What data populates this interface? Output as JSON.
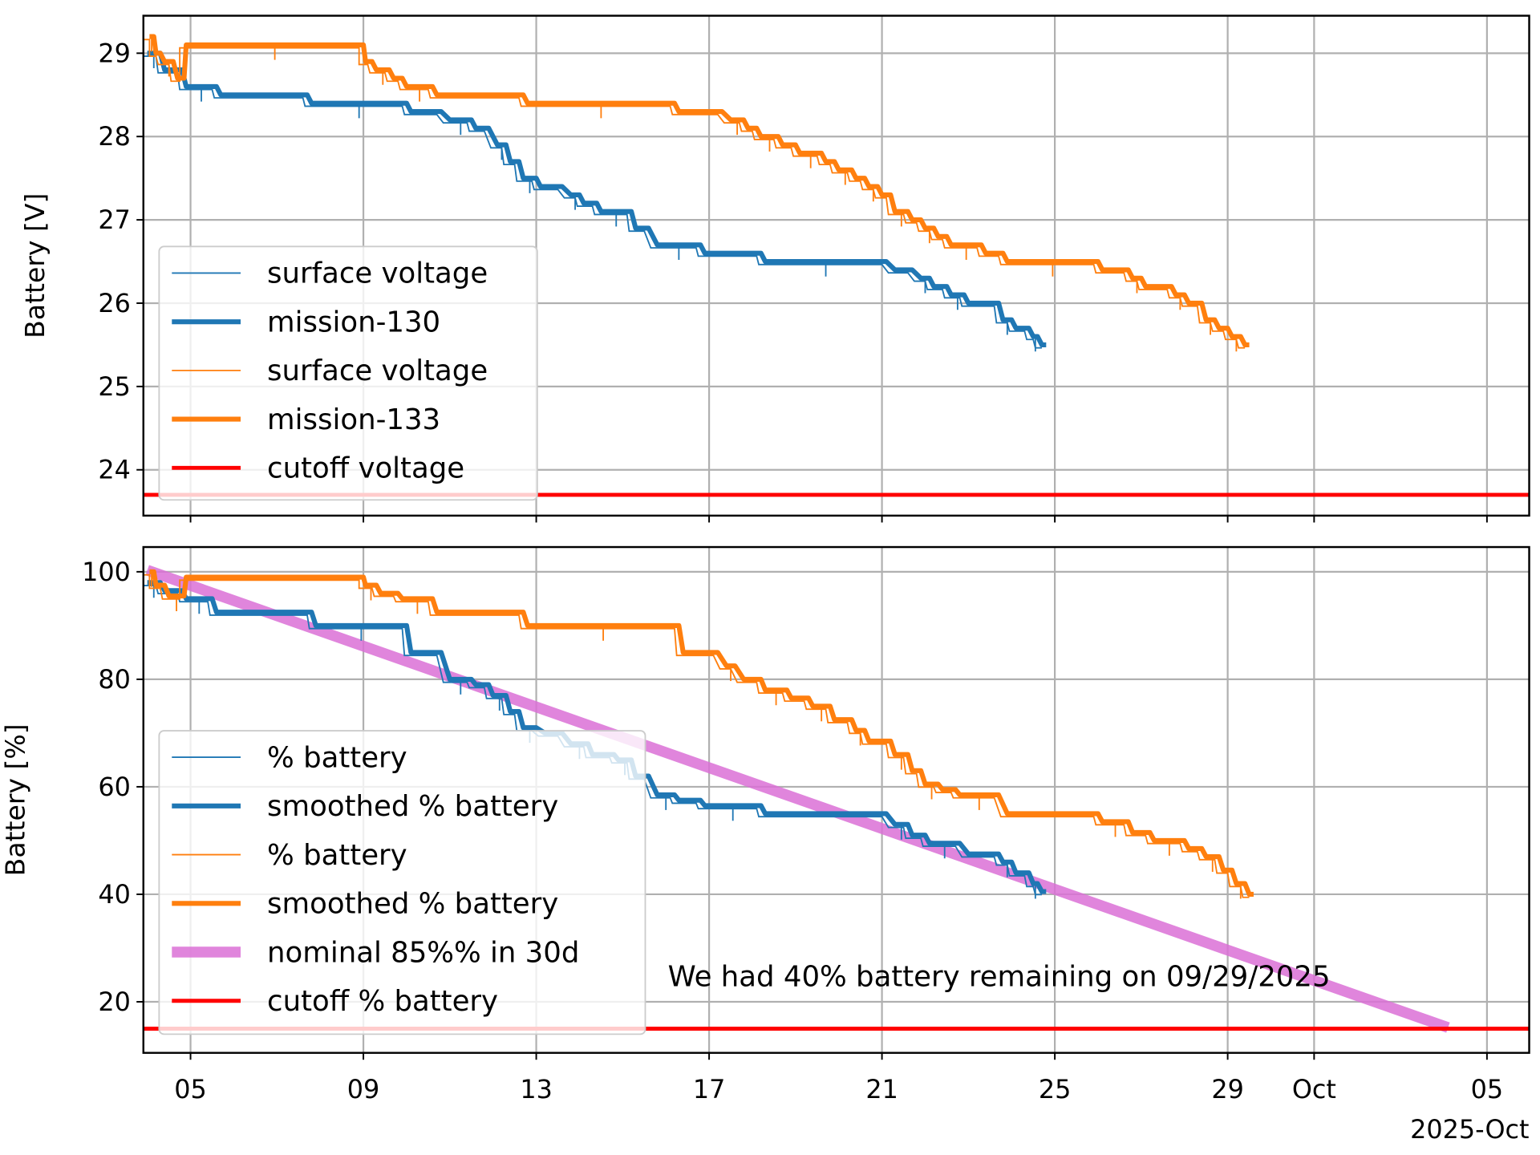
{
  "chart_data": [
    {
      "type": "line",
      "ylabel": "Battery [V]",
      "ylim": [
        23.45,
        29.45
      ],
      "xlim": [
        3.9,
        36
      ],
      "x_unit": "day of month, Sep 2025 (31 = Oct 1)",
      "yticks": [
        24,
        25,
        26,
        27,
        28,
        29
      ],
      "grid": true,
      "legend_position": "lower-left",
      "legend": [
        "surface voltage",
        "mission-130",
        "surface voltage",
        "mission-133",
        "cutoff voltage"
      ],
      "series": [
        {
          "name": "mission-130",
          "color": "#1f77b4",
          "segments": [
            [
              4.0,
              4.3,
              29.0
            ],
            [
              4.4,
              4.8,
              28.8
            ],
            [
              4.9,
              5.6,
              28.6
            ],
            [
              5.7,
              7.7,
              28.5
            ],
            [
              7.8,
              10.0,
              28.4
            ],
            [
              10.1,
              10.8,
              28.3
            ],
            [
              11.0,
              11.5,
              28.2
            ],
            [
              11.6,
              11.9,
              28.1
            ],
            [
              12.1,
              12.3,
              27.9
            ],
            [
              12.4,
              12.6,
              27.7
            ],
            [
              12.7,
              13.0,
              27.5
            ],
            [
              13.1,
              13.6,
              27.4
            ],
            [
              13.8,
              14.0,
              27.3
            ],
            [
              14.1,
              14.4,
              27.2
            ],
            [
              14.5,
              15.2,
              27.1
            ],
            [
              15.3,
              15.6,
              26.9
            ],
            [
              15.8,
              16.8,
              26.7
            ],
            [
              16.9,
              18.2,
              26.6
            ],
            [
              18.3,
              21.1,
              26.5
            ],
            [
              21.3,
              21.7,
              26.4
            ],
            [
              21.9,
              22.1,
              26.3
            ],
            [
              22.2,
              22.5,
              26.2
            ],
            [
              22.6,
              22.9,
              26.1
            ],
            [
              23.0,
              23.7,
              26.0
            ],
            [
              23.8,
              24.0,
              25.8
            ],
            [
              24.1,
              24.4,
              25.7
            ],
            [
              24.5,
              24.6,
              25.6
            ],
            [
              24.7,
              24.8,
              25.5
            ]
          ]
        },
        {
          "name": "mission-133",
          "color": "#ff7f0e",
          "segments": [
            [
              4.05,
              4.15,
              29.2
            ],
            [
              4.2,
              4.3,
              29.0
            ],
            [
              4.4,
              4.6,
              28.9
            ],
            [
              4.7,
              4.85,
              28.7
            ],
            [
              4.9,
              9.0,
              29.1
            ],
            [
              9.05,
              9.2,
              28.9
            ],
            [
              9.3,
              9.6,
              28.8
            ],
            [
              9.7,
              9.9,
              28.7
            ],
            [
              10.0,
              10.6,
              28.6
            ],
            [
              10.7,
              12.7,
              28.5
            ],
            [
              12.8,
              16.2,
              28.4
            ],
            [
              16.3,
              17.3,
              28.3
            ],
            [
              17.5,
              17.8,
              28.2
            ],
            [
              17.9,
              18.1,
              28.1
            ],
            [
              18.2,
              18.6,
              28.0
            ],
            [
              18.7,
              19.0,
              27.9
            ],
            [
              19.1,
              19.6,
              27.8
            ],
            [
              19.7,
              19.9,
              27.7
            ],
            [
              20.0,
              20.3,
              27.6
            ],
            [
              20.4,
              20.6,
              27.5
            ],
            [
              20.7,
              20.9,
              27.4
            ],
            [
              21.0,
              21.2,
              27.3
            ],
            [
              21.3,
              21.6,
              27.1
            ],
            [
              21.7,
              21.9,
              27.0
            ],
            [
              22.0,
              22.2,
              26.9
            ],
            [
              22.3,
              22.5,
              26.8
            ],
            [
              22.6,
              23.3,
              26.7
            ],
            [
              23.4,
              23.8,
              26.6
            ],
            [
              23.9,
              26.0,
              26.5
            ],
            [
              26.1,
              26.7,
              26.4
            ],
            [
              26.8,
              27.0,
              26.3
            ],
            [
              27.1,
              27.7,
              26.2
            ],
            [
              27.8,
              28.0,
              26.1
            ],
            [
              28.1,
              28.4,
              26.0
            ],
            [
              28.5,
              28.7,
              25.8
            ],
            [
              28.8,
              29.0,
              25.7
            ],
            [
              29.1,
              29.3,
              25.6
            ],
            [
              29.4,
              29.5,
              25.5
            ]
          ]
        }
      ],
      "cutoff": {
        "name": "cutoff voltage",
        "value": 23.7,
        "color": "#ff0000"
      }
    },
    {
      "type": "line",
      "ylabel": "Battery [%]",
      "ylim": [
        10.5,
        104.6
      ],
      "xlim": [
        3.9,
        36
      ],
      "yticks": [
        20,
        40,
        60,
        80,
        100
      ],
      "grid": true,
      "legend_position": "lower-left",
      "legend": [
        "% battery",
        "smoothed % battery",
        "% battery",
        "smoothed % battery",
        "nominal 85%% in 30d",
        "cutoff % battery"
      ],
      "series": [
        {
          "name": "mission-130",
          "color": "#1f77b4",
          "segments": [
            [
              4.0,
              4.3,
              98
            ],
            [
              4.4,
              4.8,
              96.5
            ],
            [
              4.9,
              5.5,
              95
            ],
            [
              5.6,
              7.8,
              92.5
            ],
            [
              7.9,
              10.0,
              90
            ],
            [
              10.1,
              10.8,
              85
            ],
            [
              11.0,
              11.5,
              80
            ],
            [
              11.6,
              11.9,
              79
            ],
            [
              12.0,
              12.3,
              77
            ],
            [
              12.4,
              12.6,
              74
            ],
            [
              12.7,
              13.0,
              71
            ],
            [
              13.2,
              13.6,
              70
            ],
            [
              13.8,
              14.2,
              68
            ],
            [
              14.3,
              14.8,
              66
            ],
            [
              14.9,
              15.2,
              65
            ],
            [
              15.3,
              15.6,
              62
            ],
            [
              15.8,
              16.2,
              58.5
            ],
            [
              16.3,
              16.8,
              57.5
            ],
            [
              16.9,
              18.2,
              56.5
            ],
            [
              18.3,
              21.1,
              55
            ],
            [
              21.3,
              21.6,
              53
            ],
            [
              21.7,
              22.0,
              51
            ],
            [
              22.1,
              22.8,
              49.5
            ],
            [
              23.0,
              23.7,
              47.5
            ],
            [
              23.8,
              24.0,
              46
            ],
            [
              24.1,
              24.4,
              44
            ],
            [
              24.5,
              24.6,
              42
            ],
            [
              24.7,
              24.8,
              40.5
            ]
          ]
        },
        {
          "name": "mission-133",
          "color": "#ff7f0e",
          "segments": [
            [
              4.05,
              4.15,
              100
            ],
            [
              4.2,
              4.4,
              97.5
            ],
            [
              4.5,
              4.85,
              95.5
            ],
            [
              4.9,
              9.0,
              99
            ],
            [
              9.05,
              9.3,
              97.5
            ],
            [
              9.4,
              9.8,
              96
            ],
            [
              9.9,
              10.6,
              95
            ],
            [
              10.7,
              12.7,
              92.5
            ],
            [
              12.8,
              16.3,
              90
            ],
            [
              16.4,
              17.2,
              85
            ],
            [
              17.4,
              17.6,
              82.5
            ],
            [
              17.8,
              18.2,
              80
            ],
            [
              18.3,
              18.8,
              78
            ],
            [
              18.9,
              19.3,
              76.5
            ],
            [
              19.4,
              19.8,
              75
            ],
            [
              19.9,
              20.3,
              72.5
            ],
            [
              20.4,
              20.6,
              70.5
            ],
            [
              20.7,
              21.2,
              68.5
            ],
            [
              21.3,
              21.6,
              66
            ],
            [
              21.7,
              21.9,
              63
            ],
            [
              22.0,
              22.3,
              60.5
            ],
            [
              22.4,
              22.7,
              59.5
            ],
            [
              22.8,
              23.7,
              58.5
            ],
            [
              23.9,
              26.0,
              55
            ],
            [
              26.1,
              26.7,
              53.5
            ],
            [
              26.8,
              27.2,
              51.5
            ],
            [
              27.3,
              28.0,
              50
            ],
            [
              28.1,
              28.4,
              48.5
            ],
            [
              28.5,
              28.8,
              47
            ],
            [
              28.9,
              29.1,
              44.5
            ],
            [
              29.2,
              29.4,
              42
            ],
            [
              29.5,
              29.6,
              40
            ]
          ]
        }
      ],
      "nominal": {
        "name": "nominal 85%% in 30d",
        "color": "#da70d6",
        "start": [
          4.0,
          100.3
        ],
        "end": [
          34.1,
          15.2
        ]
      },
      "cutoff": {
        "name": "cutoff % battery",
        "value": 15,
        "color": "#ff0000"
      },
      "annotation": "We had 40% battery remaining on 09/29/2025"
    }
  ],
  "xticks": [
    {
      "day": 5,
      "label": "05"
    },
    {
      "day": 9,
      "label": "09"
    },
    {
      "day": 13,
      "label": "13"
    },
    {
      "day": 17,
      "label": "17"
    },
    {
      "day": 21,
      "label": "21"
    },
    {
      "day": 25,
      "label": "25"
    },
    {
      "day": 29,
      "label": "29"
    },
    {
      "day": 31,
      "label": "Oct"
    },
    {
      "day": 35,
      "label": "05"
    }
  ],
  "xaxis_offset_label": "2025-Oct"
}
